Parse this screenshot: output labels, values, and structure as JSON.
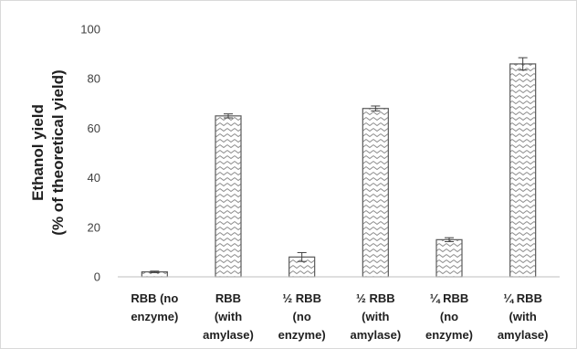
{
  "chart_data": {
    "type": "bar",
    "title": "",
    "xlabel": "",
    "ylabel_lines": [
      "Ethanol  yield",
      "(% of theoretical yield)"
    ],
    "ylim": [
      0,
      100
    ],
    "yticks": [
      0,
      20,
      40,
      60,
      80,
      100
    ],
    "grid": false,
    "legend": "none",
    "categories": [
      [
        "RBB (no",
        "enzyme)"
      ],
      [
        "RBB",
        "(with",
        "amylase)"
      ],
      [
        "½ RBB",
        "(no",
        "enzyme)"
      ],
      [
        "½ RBB",
        "(with",
        "amylase)"
      ],
      [
        "¼ RBB",
        "(no",
        "enzyme)"
      ],
      [
        "¼ RBB",
        "(with",
        "amylase)"
      ]
    ],
    "values": [
      2,
      65,
      8,
      68,
      15,
      86
    ],
    "errors": [
      0.3,
      0.8,
      1.8,
      1.0,
      0.8,
      2.5
    ],
    "bar_fill": "zigzag-hatch",
    "colors": {
      "bar_stroke": "#5a5a5a",
      "hatch": "#8c8c8c",
      "axis": "#bfbfbf",
      "error_bar": "#404040"
    }
  }
}
